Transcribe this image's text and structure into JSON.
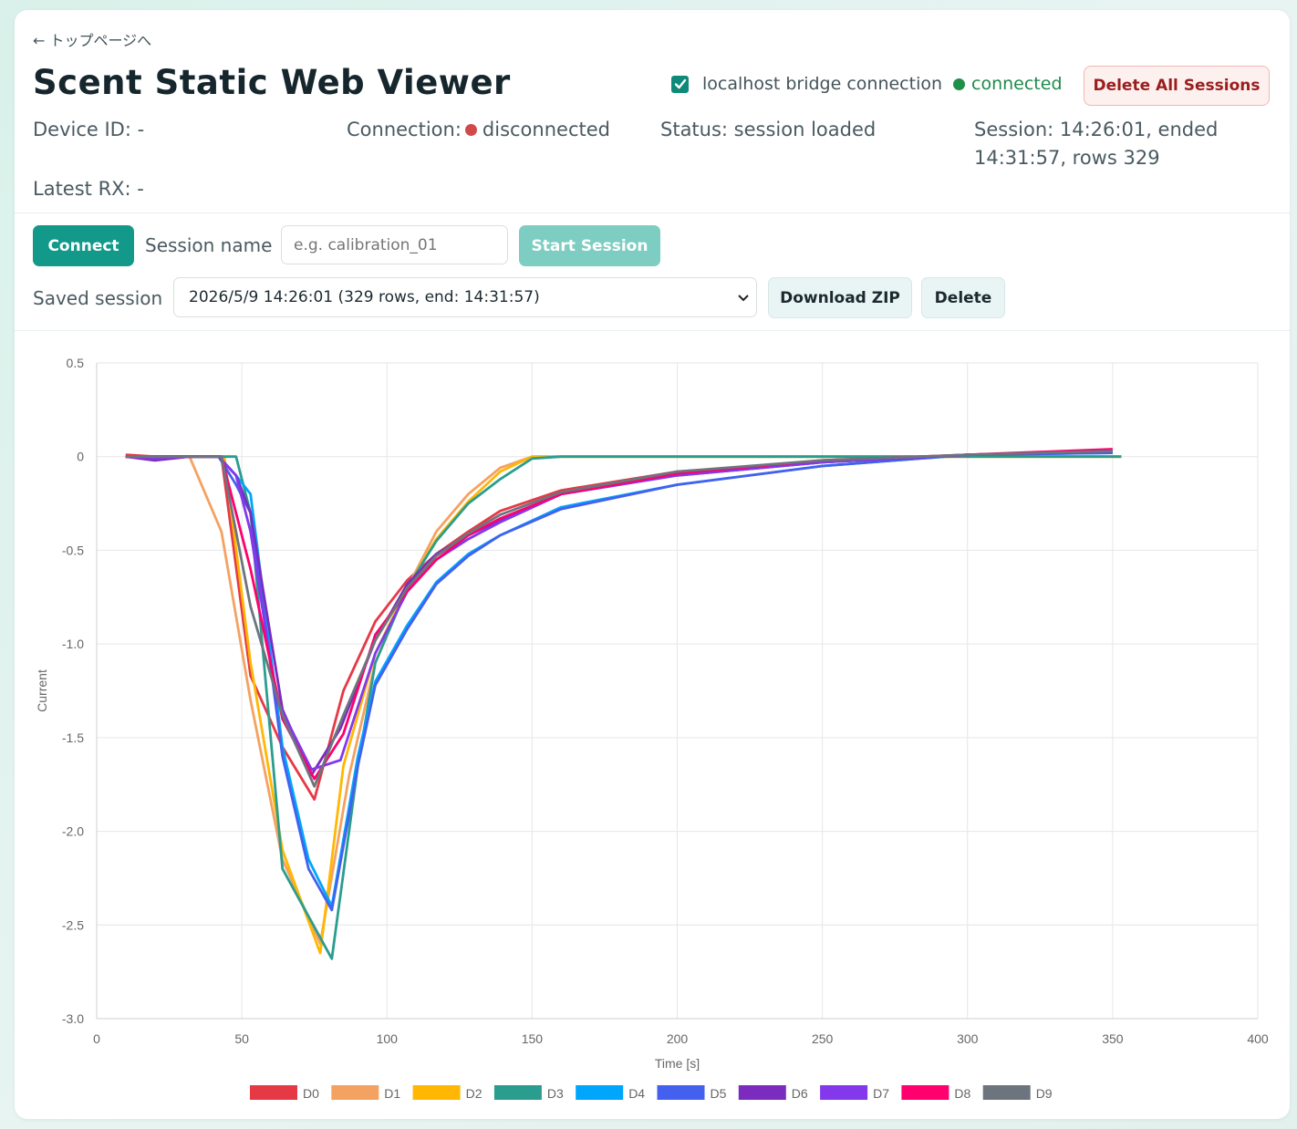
{
  "nav": {
    "back_label": "← トップページへ"
  },
  "header": {
    "title": "Scent Static Web Viewer",
    "bridge_label": "localhost bridge connection",
    "bridge_checked": true,
    "bridge_status": "connected",
    "delete_all_label": "Delete All Sessions"
  },
  "info": {
    "device_id": "Device ID: -",
    "connection_label": "Connection:",
    "connection_status": "disconnected",
    "status": "Status: session loaded",
    "session_line1": "Session: 14:26:01, ended",
    "session_line2": "14:31:57, rows 329",
    "latest_rx": "Latest RX: -"
  },
  "controls": {
    "connect_label": "Connect",
    "session_name_label": "Session name",
    "session_name_value": "",
    "session_name_placeholder": "e.g. calibration_01",
    "start_label": "Start Session",
    "saved_session_label": "Saved session",
    "saved_session_selected": "2026/5/9 14:26:01 (329 rows, end: 14:31:57)",
    "download_label": "Download ZIP",
    "delete_label": "Delete"
  },
  "colors": {
    "accent": "#13998a",
    "danger": "#9a1e1e",
    "connected": "#1f8f4a",
    "disconnected": "#d04a4a"
  },
  "icons": {
    "checkbox": "check-icon",
    "select": "chevron-down-icon"
  },
  "chart_data": {
    "type": "line",
    "xlabel": "Time [s]",
    "ylabel": "Current",
    "xlim": [
      0,
      400
    ],
    "ylim": [
      -3.0,
      0.5
    ],
    "x_ticks": [
      0,
      50,
      100,
      150,
      200,
      250,
      300,
      350,
      400
    ],
    "x_tick_labels": [
      "0",
      "50",
      "100",
      "150",
      "200",
      "250",
      "300",
      "350",
      "400"
    ],
    "y_ticks": [
      0.5,
      0,
      -0.5,
      -1.0,
      -1.5,
      -2.0,
      -2.5,
      -3.0
    ],
    "y_tick_labels": [
      "0.5",
      "0",
      "-0.5",
      "-1.0",
      "-1.5",
      "-2.0",
      "-2.5",
      "-3.0"
    ],
    "grid": true,
    "legend_position": "bottom",
    "series": [
      {
        "name": "D0",
        "color": "#e63946",
        "x": [
          10,
          20,
          32,
          43,
          53,
          64,
          75,
          85,
          96,
          107,
          117,
          128,
          139,
          160,
          200,
          250,
          300,
          350
        ],
        "y": [
          0.01,
          0,
          0,
          0,
          -1.17,
          -1.55,
          -1.83,
          -1.25,
          -0.88,
          -0.66,
          -0.52,
          -0.4,
          -0.29,
          -0.18,
          -0.08,
          -0.03,
          0.01,
          0.03
        ]
      },
      {
        "name": "D1",
        "color": "#f4a261",
        "x": [
          10,
          20,
          32,
          43,
          53,
          64,
          77,
          87,
          96,
          107,
          117,
          128,
          139,
          150,
          250,
          300,
          353
        ],
        "y": [
          0,
          0,
          0,
          -0.4,
          -1.3,
          -2.15,
          -2.6,
          -1.7,
          -1.1,
          -0.7,
          -0.4,
          -0.2,
          -0.06,
          0,
          0,
          0,
          0
        ]
      },
      {
        "name": "D2",
        "color": "#ffb703",
        "x": [
          10,
          20,
          32,
          44,
          53,
          64,
          77,
          85,
          96,
          107,
          117,
          128,
          139,
          150,
          250,
          300,
          353
        ],
        "y": [
          0,
          0,
          0,
          0,
          -1.1,
          -2.1,
          -2.65,
          -1.65,
          -1.05,
          -0.7,
          -0.44,
          -0.24,
          -0.08,
          0,
          0,
          0,
          0
        ]
      },
      {
        "name": "D3",
        "color": "#2a9d8f",
        "x": [
          10,
          20,
          32,
          42,
          48,
          53,
          64,
          81,
          90,
          96,
          107,
          117,
          128,
          139,
          150,
          160,
          250,
          300,
          353
        ],
        "y": [
          0,
          0,
          0,
          0,
          0,
          -0.3,
          -2.2,
          -2.68,
          -1.65,
          -1.1,
          -0.7,
          -0.45,
          -0.25,
          -0.12,
          -0.01,
          0,
          0,
          0,
          0
        ]
      },
      {
        "name": "D4",
        "color": "#00a6fb",
        "x": [
          10,
          20,
          32,
          42,
          48,
          53,
          64,
          73,
          81,
          90,
          96,
          107,
          117,
          128,
          139,
          160,
          200,
          250,
          300,
          350
        ],
        "y": [
          0,
          0,
          0,
          0,
          -0.1,
          -0.2,
          -1.55,
          -2.15,
          -2.4,
          -1.6,
          -1.2,
          -0.9,
          -0.67,
          -0.52,
          -0.42,
          -0.27,
          -0.15,
          -0.05,
          0.01,
          0.02
        ]
      },
      {
        "name": "D5",
        "color": "#4361ee",
        "x": [
          10,
          20,
          32,
          42,
          48,
          53,
          64,
          73,
          81,
          90,
          96,
          107,
          117,
          128,
          139,
          160,
          200,
          250,
          300,
          350
        ],
        "y": [
          0,
          0,
          0,
          0,
          -0.15,
          -0.3,
          -1.6,
          -2.2,
          -2.42,
          -1.65,
          -1.22,
          -0.92,
          -0.68,
          -0.53,
          -0.42,
          -0.28,
          -0.15,
          -0.05,
          0.01,
          0.02
        ]
      },
      {
        "name": "D6",
        "color": "#7b2cbf",
        "x": [
          10,
          20,
          32,
          42,
          48,
          53,
          64,
          74,
          84,
          96,
          107,
          117,
          128,
          139,
          160,
          200,
          250,
          300,
          350
        ],
        "y": [
          0,
          -0.02,
          0,
          0,
          -0.1,
          -0.3,
          -1.35,
          -1.7,
          -1.45,
          -0.98,
          -0.68,
          -0.52,
          -0.42,
          -0.34,
          -0.2,
          -0.1,
          -0.03,
          0.01,
          0.03
        ]
      },
      {
        "name": "D7",
        "color": "#8338ec",
        "x": [
          10,
          20,
          32,
          42,
          48,
          53,
          62,
          74,
          84,
          96,
          107,
          117,
          128,
          139,
          160,
          200,
          250,
          300,
          350
        ],
        "y": [
          0,
          -0.01,
          0,
          0,
          -0.1,
          -0.4,
          -1.3,
          -1.67,
          -1.62,
          -1.05,
          -0.72,
          -0.55,
          -0.44,
          -0.35,
          -0.2,
          -0.1,
          -0.03,
          0.01,
          0.03
        ]
      },
      {
        "name": "D8",
        "color": "#ff006e",
        "x": [
          10,
          20,
          32,
          43,
          53,
          64,
          75,
          85,
          96,
          107,
          117,
          128,
          139,
          160,
          200,
          250,
          300,
          350
        ],
        "y": [
          0,
          0,
          0,
          0,
          -0.6,
          -1.4,
          -1.72,
          -1.48,
          -0.95,
          -0.72,
          -0.55,
          -0.42,
          -0.33,
          -0.2,
          -0.09,
          -0.02,
          0.01,
          0.04
        ]
      },
      {
        "name": "D9",
        "color": "#6c757d",
        "x": [
          10,
          20,
          32,
          43,
          53,
          64,
          75,
          85,
          96,
          107,
          117,
          128,
          139,
          160,
          200,
          250,
          300,
          350
        ],
        "y": [
          0,
          0,
          0,
          0,
          -0.8,
          -1.38,
          -1.76,
          -1.38,
          -0.98,
          -0.7,
          -0.53,
          -0.41,
          -0.31,
          -0.19,
          -0.08,
          -0.02,
          0.01,
          0.03
        ]
      }
    ]
  }
}
